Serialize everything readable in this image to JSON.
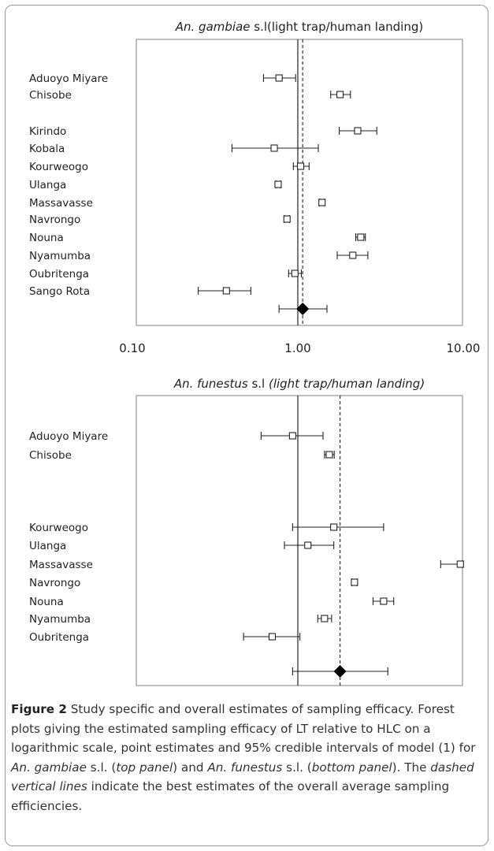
{
  "chart_data": [
    {
      "type": "forest",
      "title_italic": "An. gambiae",
      "title_rest": " s.l(light trap/human landing)",
      "x_scale": "log",
      "xlim": [
        0.1,
        10
      ],
      "x_ticks": [
        "0.10",
        "1.00",
        "10.00"
      ],
      "grid": false,
      "reference_line": 1,
      "overall_estimate_line": 1.07,
      "sites": [
        {
          "name": "Aduoyo Miyare",
          "estimate": 0.77,
          "lower": 0.62,
          "upper": 0.97
        },
        {
          "name": "Chisobe",
          "estimate": 1.8,
          "lower": 1.58,
          "upper": 2.08
        },
        {
          "name": "Kirindo",
          "estimate": 2.3,
          "lower": 1.78,
          "upper": 3.0
        },
        {
          "name": "Kobala",
          "estimate": 0.72,
          "lower": 0.4,
          "upper": 1.33
        },
        {
          "name": "Kourweogo",
          "estimate": 1.04,
          "lower": 0.94,
          "upper": 1.17
        },
        {
          "name": "Ulanga",
          "estimate": 0.76,
          "lower": 0.74,
          "upper": 0.79
        },
        {
          "name": "Massavasse",
          "estimate": 1.4,
          "lower": 1.35,
          "upper": 1.45
        },
        {
          "name": "Navrongo",
          "estimate": 0.86,
          "lower": 0.83,
          "upper": 0.89
        },
        {
          "name": "Nouna",
          "estimate": 2.4,
          "lower": 2.24,
          "upper": 2.56
        },
        {
          "name": "Nyamumba",
          "estimate": 2.15,
          "lower": 1.73,
          "upper": 2.65
        },
        {
          "name": "Oubritenga",
          "estimate": 0.96,
          "lower": 0.88,
          "upper": 1.05
        },
        {
          "name": "Sango Rota",
          "estimate": 0.37,
          "lower": 0.25,
          "upper": 0.52
        }
      ],
      "overall": {
        "estimate": 1.07,
        "lower": 0.77,
        "upper": 1.5
      }
    },
    {
      "type": "forest",
      "title_italic": "An. funestus",
      "title_rest": " s.l ",
      "title_italic_2": "(light trap/human landing)",
      "x_scale": "log",
      "xlim": [
        0.1,
        10
      ],
      "x_ticks": [
        "0.10",
        "1.00",
        "10.00"
      ],
      "grid": false,
      "reference_line": 1,
      "overall_estimate_line": 1.8,
      "sites": [
        {
          "name": "Aduoyo Miyare",
          "estimate": 0.93,
          "lower": 0.6,
          "upper": 1.42
        },
        {
          "name": "Chisobe",
          "estimate": 1.55,
          "lower": 1.45,
          "upper": 1.66
        },
        {
          "name": "Kourweogo",
          "estimate": 1.65,
          "lower": 0.93,
          "upper": 3.3
        },
        {
          "name": "Ulanga",
          "estimate": 1.15,
          "lower": 0.83,
          "upper": 1.65
        },
        {
          "name": "Massavasse",
          "estimate": 9.6,
          "lower": 7.3,
          "upper": 11.0
        },
        {
          "name": "Navrongo",
          "estimate": 2.2,
          "lower": 2.12,
          "upper": 2.28
        },
        {
          "name": "Nouna",
          "estimate": 3.3,
          "lower": 2.85,
          "upper": 3.8
        },
        {
          "name": "Nyamumba",
          "estimate": 1.45,
          "lower": 1.32,
          "upper": 1.6
        },
        {
          "name": "Oubritenga",
          "estimate": 0.7,
          "lower": 0.47,
          "upper": 1.03
        }
      ],
      "overall": {
        "estimate": 1.8,
        "lower": 0.93,
        "upper": 3.5
      }
    }
  ],
  "caption": {
    "label": "Figure 2",
    "heading": "  Study specific and overall estimates of sampling efficacy.",
    "text_1": " Forest plots giving the estimated sampling efficacy of LT relative to HLC on a logarithmic scale, point estimates and 95% credible intervals of model (1) for ",
    "species_1": "An. gambiae",
    "text_2": " s.l. (",
    "top_panel": "top panel",
    "text_3": ") and ",
    "species_2": "An. funestus",
    "text_4": " s.l. (",
    "bottom_panel": "bottom panel",
    "text_5": "). The ",
    "dashed_lines": "dashed vertical lines",
    "text_6": " indicate the best estimates of the overall average sampling efficiencies."
  }
}
